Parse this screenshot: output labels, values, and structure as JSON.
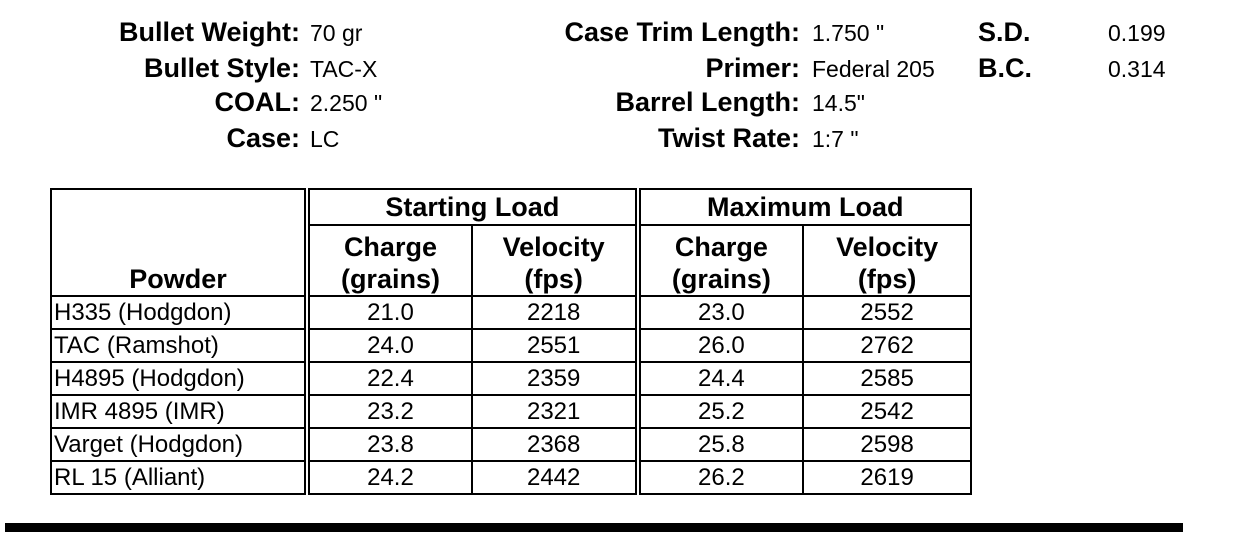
{
  "specs": [
    [
      {
        "label": "Bullet Weight:",
        "value": "70 gr"
      },
      {
        "label": "Bullet Style:",
        "value": "TAC-X"
      },
      {
        "label": "COAL:",
        "value": "2.250 \""
      },
      {
        "label": "Case:",
        "value": "LC"
      }
    ],
    [
      {
        "label": "Case Trim Length:",
        "value": "1.750 \""
      },
      {
        "label": "Primer:",
        "value": "Federal 205"
      },
      {
        "label": "Barrel Length:",
        "value": "14.5\""
      },
      {
        "label": "Twist Rate:",
        "value": "1:7 \""
      }
    ],
    [
      {
        "label": "S.D.",
        "value": "0.199"
      },
      {
        "label": "B.C.",
        "value": "0.314"
      }
    ]
  ],
  "table": {
    "groups": [
      "Starting Load",
      "Maximum Load"
    ],
    "header": [
      "Powder",
      "Charge\n(grains)",
      "Velocity\n(fps)",
      "Charge\n(grains)",
      "Velocity\n(fps)"
    ],
    "rows": [
      [
        "H335 (Hodgdon)",
        "21.0",
        "2218",
        "23.0",
        "2552"
      ],
      [
        "TAC (Ramshot)",
        "24.0",
        "2551",
        "26.0",
        "2762"
      ],
      [
        "H4895 (Hodgdon)",
        "22.4",
        "2359",
        "24.4",
        "2585"
      ],
      [
        "IMR 4895 (IMR)",
        "23.2",
        "2321",
        "25.2",
        "2542"
      ],
      [
        "Varget (Hodgdon)",
        "23.8",
        "2368",
        "25.8",
        "2598"
      ],
      [
        "RL 15 (Alliant)",
        "24.2",
        "2442",
        "26.2",
        "2619"
      ]
    ]
  }
}
